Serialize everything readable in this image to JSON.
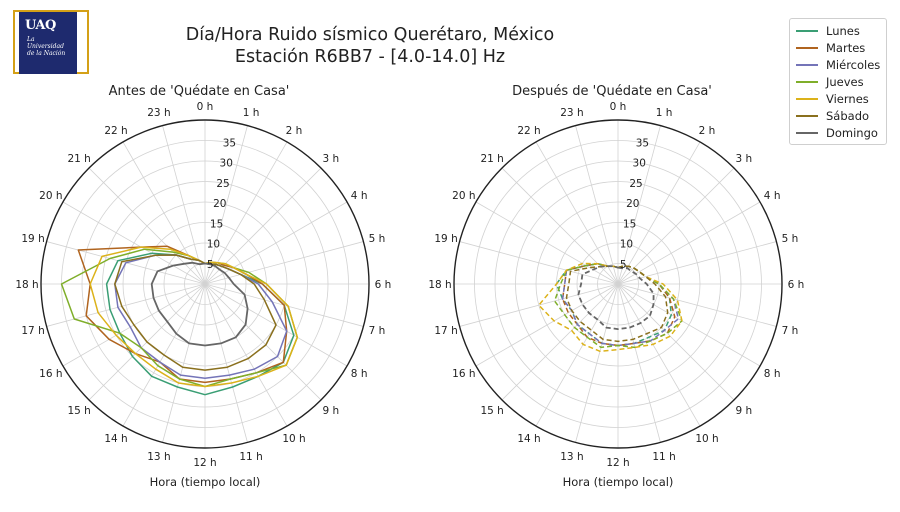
{
  "logo": {
    "mark": "UAQ",
    "subtitle": "La Universidad de la Nación",
    "colors": {
      "frame": "#d4a017",
      "tile": "#1e2a6e"
    }
  },
  "title": {
    "line1": "Día/Hora Ruido sísmico Querétaro, México",
    "line2": "Estación R6BB7 - [4.0-14.0] Hz"
  },
  "legend": {
    "items": [
      {
        "name": "Lunes",
        "color": "#3a9e74"
      },
      {
        "name": "Martes",
        "color": "#b0641f"
      },
      {
        "name": "Miércoles",
        "color": "#7474b8"
      },
      {
        "name": "Jueves",
        "color": "#7fae2a"
      },
      {
        "name": "Viernes",
        "color": "#dcb21a"
      },
      {
        "name": "Sábado",
        "color": "#8a701e"
      },
      {
        "name": "Domingo",
        "color": "#666666"
      }
    ]
  },
  "chart_data": [
    {
      "type": "line",
      "projection": "polar",
      "title": "Antes de 'Quédate en Casa'",
      "xlabel": "Hora (tiempo local)",
      "angular_ticks": [
        "0 h",
        "1 h",
        "2 h",
        "3 h",
        "4 h",
        "5 h",
        "6 h",
        "7 h",
        "8 h",
        "9 h",
        "10 h",
        "11 h",
        "12 h",
        "13 h",
        "14 h",
        "15 h",
        "16 h",
        "17 h",
        "18 h",
        "19 h",
        "20 h",
        "21 h",
        "22 h",
        "23 h"
      ],
      "radial_ticks": [
        5,
        10,
        15,
        20,
        25,
        30,
        35
      ],
      "rlim": [
        0,
        40
      ],
      "line_style": "solid",
      "hours": [
        0,
        1,
        2,
        3,
        4,
        5,
        6,
        7,
        8,
        9,
        10,
        11,
        12,
        13,
        14,
        15,
        16,
        17,
        18,
        19,
        20,
        21,
        22,
        23
      ],
      "series": [
        {
          "name": "Lunes",
          "values": [
            5,
            5,
            5.5,
            6,
            7,
            9,
            14,
            20,
            25,
            27,
            26,
            26,
            27,
            26,
            26,
            25,
            24,
            24,
            24,
            22,
            15,
            10,
            7,
            6
          ]
        },
        {
          "name": "Martes",
          "values": [
            5,
            5.5,
            6,
            6.5,
            8,
            10,
            14,
            20,
            23,
            27,
            25,
            24,
            24,
            24,
            22,
            24,
            27,
            30,
            28,
            32,
            18,
            13,
            8,
            6
          ]
        },
        {
          "name": "Miércoles",
          "values": [
            5,
            5,
            5.5,
            6,
            7,
            9,
            13,
            17,
            23,
            25,
            24,
            23,
            23,
            23,
            22,
            22,
            21,
            22,
            22,
            20,
            14,
            10,
            7,
            6
          ]
        },
        {
          "name": "Jueves",
          "values": [
            5,
            5.5,
            6,
            7,
            8,
            11,
            15,
            21,
            26,
            28,
            25,
            24,
            25,
            24,
            23,
            22,
            24,
            33,
            35,
            24,
            17,
            11,
            8,
            6
          ]
        },
        {
          "name": "Viernes",
          "values": [
            5,
            5.5,
            6,
            7,
            8,
            10,
            15,
            21,
            26,
            28,
            26,
            25,
            25,
            25,
            24,
            24,
            25,
            27,
            28,
            26,
            18,
            12,
            8,
            6
          ]
        },
        {
          "name": "Sábado",
          "values": [
            5,
            5,
            5.5,
            6,
            7,
            9,
            12,
            15,
            20,
            21,
            21,
            21,
            21,
            21,
            20,
            20,
            20,
            21,
            22,
            21,
            14,
            10,
            7,
            6
          ]
        },
        {
          "name": "Domingo",
          "values": [
            5,
            5,
            5,
            5,
            5.5,
            6,
            7,
            10,
            12,
            14,
            15,
            15,
            15,
            15,
            14,
            13,
            13,
            13,
            13,
            12,
            9,
            7,
            6,
            5
          ]
        }
      ]
    },
    {
      "type": "line",
      "projection": "polar",
      "title": "Después de 'Quédate en Casa'",
      "xlabel": "Hora (tiempo local)",
      "angular_ticks": [
        "0 h",
        "1 h",
        "2 h",
        "3 h",
        "4 h",
        "5 h",
        "6 h",
        "7 h",
        "8 h",
        "9 h",
        "10 h",
        "11 h",
        "12 h",
        "13 h",
        "14 h",
        "15 h",
        "16 h",
        "17 h",
        "18 h",
        "19 h",
        "20 h",
        "21 h",
        "22 h",
        "23 h"
      ],
      "radial_ticks": [
        5,
        10,
        15,
        20,
        25,
        30,
        35
      ],
      "rlim": [
        0,
        40
      ],
      "line_style": "dashed",
      "hours": [
        0,
        1,
        2,
        3,
        4,
        5,
        6,
        7,
        8,
        9,
        10,
        11,
        12,
        13,
        14,
        15,
        16,
        17,
        18,
        19,
        20,
        21,
        22,
        23
      ],
      "series": [
        {
          "name": "Lunes",
          "values": [
            4,
            4.5,
            5,
            5.5,
            6,
            7,
            10,
            13,
            15,
            16,
            15,
            15,
            15,
            15,
            14,
            14,
            13,
            14,
            15,
            13,
            9,
            7,
            5,
            4.5
          ]
        },
        {
          "name": "Martes",
          "values": [
            4,
            4.5,
            5,
            5.5,
            6,
            7,
            10,
            13,
            16,
            17,
            16,
            15,
            15,
            15,
            15,
            14,
            14,
            14,
            13,
            13,
            9,
            7,
            5,
            4.5
          ]
        },
        {
          "name": "Miércoles",
          "values": [
            4,
            4.5,
            5,
            5.5,
            6,
            7,
            10,
            14,
            17,
            16,
            16,
            15,
            15,
            15,
            14,
            14,
            13,
            14,
            13,
            13,
            9,
            7,
            5,
            4.5
          ]
        },
        {
          "name": "Jueves",
          "values": [
            4,
            4.5,
            5,
            5.5,
            6,
            7,
            10,
            14,
            18,
            17,
            16,
            16,
            15,
            16,
            15,
            15,
            15,
            16,
            14,
            13,
            9,
            7,
            5,
            4.5
          ]
        },
        {
          "name": "Viernes",
          "values": [
            4,
            4.5,
            5,
            5.5,
            6,
            7,
            11,
            15,
            18,
            18,
            17,
            16,
            16,
            17,
            17,
            16,
            18,
            20,
            15,
            13,
            10,
            7,
            5,
            4.5
          ]
        },
        {
          "name": "Sábado",
          "values": [
            4,
            4.5,
            5,
            5.5,
            6,
            7,
            9,
            12,
            14,
            15,
            14,
            14,
            14,
            14,
            13,
            13,
            13,
            13,
            12,
            12,
            8,
            6,
            5,
            4.5
          ]
        },
        {
          "name": "Domingo",
          "values": [
            4,
            4,
            4.5,
            4.5,
            5,
            5.5,
            7,
            9,
            10,
            11,
            11,
            11,
            11,
            11,
            10,
            10,
            10,
            10,
            9,
            9,
            7,
            6,
            5,
            4.5
          ]
        }
      ]
    }
  ]
}
